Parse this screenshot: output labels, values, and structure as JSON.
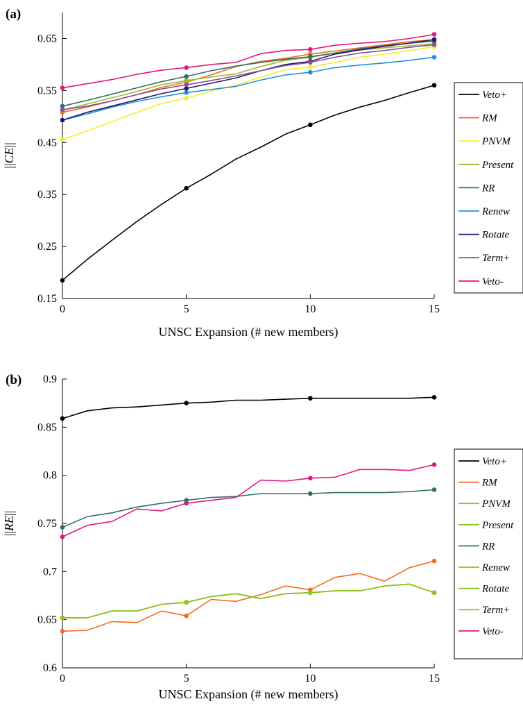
{
  "chart_data": [
    {
      "panel_label": "(a)",
      "type": "line",
      "xlabel": "UNSC Expansion (# new members)",
      "ylabel": {
        "prefix": "||",
        "italic": "CE",
        "suffix": "||"
      },
      "xlim": [
        0,
        15
      ],
      "ylim": [
        0.15,
        0.7
      ],
      "xticks": [
        "0",
        "5",
        "10",
        "15"
      ],
      "yticks": [
        "0.15",
        "0.25",
        "0.35",
        "0.45",
        "0.55",
        "0.65"
      ],
      "grid": false,
      "legend_position": "right",
      "x": [
        0,
        1,
        2,
        3,
        4,
        5,
        6,
        7,
        8,
        9,
        10,
        11,
        12,
        13,
        14,
        15
      ],
      "markers_at": [
        0,
        5,
        10,
        15
      ],
      "series": [
        {
          "name": "Veto+",
          "color": "#000000",
          "values": [
            0.185,
            0.225,
            0.262,
            0.298,
            0.331,
            0.362,
            0.389,
            0.418,
            0.441,
            0.466,
            0.484,
            0.503,
            0.518,
            0.531,
            0.546,
            0.56
          ]
        },
        {
          "name": "RM",
          "color": "#f26b21",
          "values": [
            0.508,
            0.518,
            0.53,
            0.542,
            0.556,
            0.566,
            0.58,
            0.596,
            0.606,
            0.612,
            0.62,
            0.626,
            0.632,
            0.638,
            0.644,
            0.648
          ]
        },
        {
          "name": "PNVM",
          "color": "#f5ee2b",
          "values": [
            0.456,
            0.472,
            0.49,
            0.508,
            0.525,
            0.535,
            0.549,
            0.56,
            0.576,
            0.59,
            0.595,
            0.604,
            0.614,
            0.62,
            0.627,
            0.634
          ]
        },
        {
          "name": "Present",
          "color": "#9bbb2c",
          "values": [
            0.512,
            0.524,
            0.536,
            0.548,
            0.561,
            0.569,
            0.576,
            0.582,
            0.596,
            0.608,
            0.614,
            0.622,
            0.628,
            0.632,
            0.636,
            0.64
          ]
        },
        {
          "name": "RR",
          "color": "#2f7062",
          "values": [
            0.52,
            0.531,
            0.543,
            0.555,
            0.567,
            0.577,
            0.588,
            0.597,
            0.604,
            0.61,
            0.615,
            0.622,
            0.63,
            0.636,
            0.641,
            0.645
          ]
        },
        {
          "name": "Renew",
          "color": "#1f8fe0",
          "values": [
            0.493,
            0.505,
            0.518,
            0.529,
            0.538,
            0.546,
            0.552,
            0.558,
            0.57,
            0.58,
            0.585,
            0.594,
            0.599,
            0.603,
            0.608,
            0.614
          ]
        },
        {
          "name": "Rotate",
          "color": "#221a6d",
          "values": [
            0.493,
            0.508,
            0.52,
            0.532,
            0.544,
            0.554,
            0.564,
            0.574,
            0.588,
            0.6,
            0.606,
            0.62,
            0.628,
            0.635,
            0.641,
            0.648
          ]
        },
        {
          "name": "Term+",
          "color": "#8a4fa0",
          "values": [
            0.513,
            0.52,
            0.53,
            0.542,
            0.553,
            0.561,
            0.569,
            0.578,
            0.588,
            0.598,
            0.604,
            0.614,
            0.622,
            0.627,
            0.633,
            0.638
          ]
        },
        {
          "name": "Veto-",
          "color": "#e0177f",
          "values": [
            0.555,
            0.563,
            0.571,
            0.581,
            0.589,
            0.594,
            0.6,
            0.604,
            0.621,
            0.627,
            0.629,
            0.637,
            0.641,
            0.644,
            0.65,
            0.658
          ]
        }
      ]
    },
    {
      "panel_label": "(b)",
      "type": "line",
      "xlabel": "UNSC Expansion (# new members)",
      "ylabel": {
        "prefix": "||",
        "italic": "RE",
        "suffix": "||"
      },
      "xlim": [
        0,
        15
      ],
      "ylim": [
        0.6,
        0.9
      ],
      "xticks": [
        "0",
        "5",
        "10",
        "15"
      ],
      "yticks": [
        "0.6",
        "0.65",
        "0.7",
        "0.75",
        "0.8",
        "0.85",
        "0.9"
      ],
      "grid": false,
      "legend_position": "right",
      "x": [
        0,
        1,
        2,
        3,
        4,
        5,
        6,
        7,
        8,
        9,
        10,
        11,
        12,
        13,
        14,
        15
      ],
      "markers_at": [
        0,
        5,
        10,
        15
      ],
      "series": [
        {
          "name": "Veto+",
          "color": "#000000",
          "values": [
            0.859,
            0.867,
            0.87,
            0.871,
            0.873,
            0.875,
            0.876,
            0.878,
            0.878,
            0.879,
            0.88,
            0.88,
            0.88,
            0.88,
            0.88,
            0.881
          ]
        },
        {
          "name": "RM",
          "color": "#f26b21",
          "values": [
            0.638,
            0.639,
            0.648,
            0.647,
            0.659,
            0.654,
            0.671,
            0.669,
            0.676,
            0.685,
            0.681,
            0.694,
            0.698,
            0.69,
            0.704,
            0.711
          ]
        },
        {
          "name": "PNVM",
          "color": "#8fc31f",
          "values": [
            0.652,
            0.652,
            0.659,
            0.659,
            0.666,
            0.668,
            0.674,
            0.677,
            0.672,
            0.677,
            0.678,
            0.68,
            0.68,
            0.685,
            0.687,
            0.678
          ]
        },
        {
          "name": "Present",
          "color": "#8fc31f",
          "values": [
            0.652,
            0.652,
            0.659,
            0.659,
            0.666,
            0.668,
            0.674,
            0.677,
            0.672,
            0.677,
            0.678,
            0.68,
            0.68,
            0.685,
            0.687,
            0.678
          ]
        },
        {
          "name": "RR",
          "color": "#2f7062",
          "values": [
            0.746,
            0.757,
            0.761,
            0.767,
            0.771,
            0.774,
            0.777,
            0.778,
            0.781,
            0.781,
            0.781,
            0.782,
            0.782,
            0.782,
            0.783,
            0.785
          ]
        },
        {
          "name": "Renew",
          "color": "#8fc31f",
          "values": [
            0.652,
            0.652,
            0.659,
            0.659,
            0.666,
            0.668,
            0.674,
            0.677,
            0.672,
            0.677,
            0.678,
            0.68,
            0.68,
            0.685,
            0.687,
            0.678
          ]
        },
        {
          "name": "Rotate",
          "color": "#8fc31f",
          "values": [
            0.652,
            0.652,
            0.659,
            0.659,
            0.666,
            0.668,
            0.674,
            0.677,
            0.672,
            0.677,
            0.678,
            0.68,
            0.68,
            0.685,
            0.687,
            0.678
          ]
        },
        {
          "name": "Term+",
          "color": "#8fc31f",
          "values": [
            0.652,
            0.652,
            0.659,
            0.659,
            0.666,
            0.668,
            0.674,
            0.677,
            0.672,
            0.677,
            0.678,
            0.68,
            0.68,
            0.685,
            0.687,
            0.678
          ]
        },
        {
          "name": "Veto-",
          "color": "#e0177f",
          "values": [
            0.736,
            0.748,
            0.752,
            0.765,
            0.763,
            0.771,
            0.774,
            0.777,
            0.795,
            0.794,
            0.797,
            0.798,
            0.806,
            0.806,
            0.805,
            0.811
          ]
        }
      ]
    }
  ]
}
